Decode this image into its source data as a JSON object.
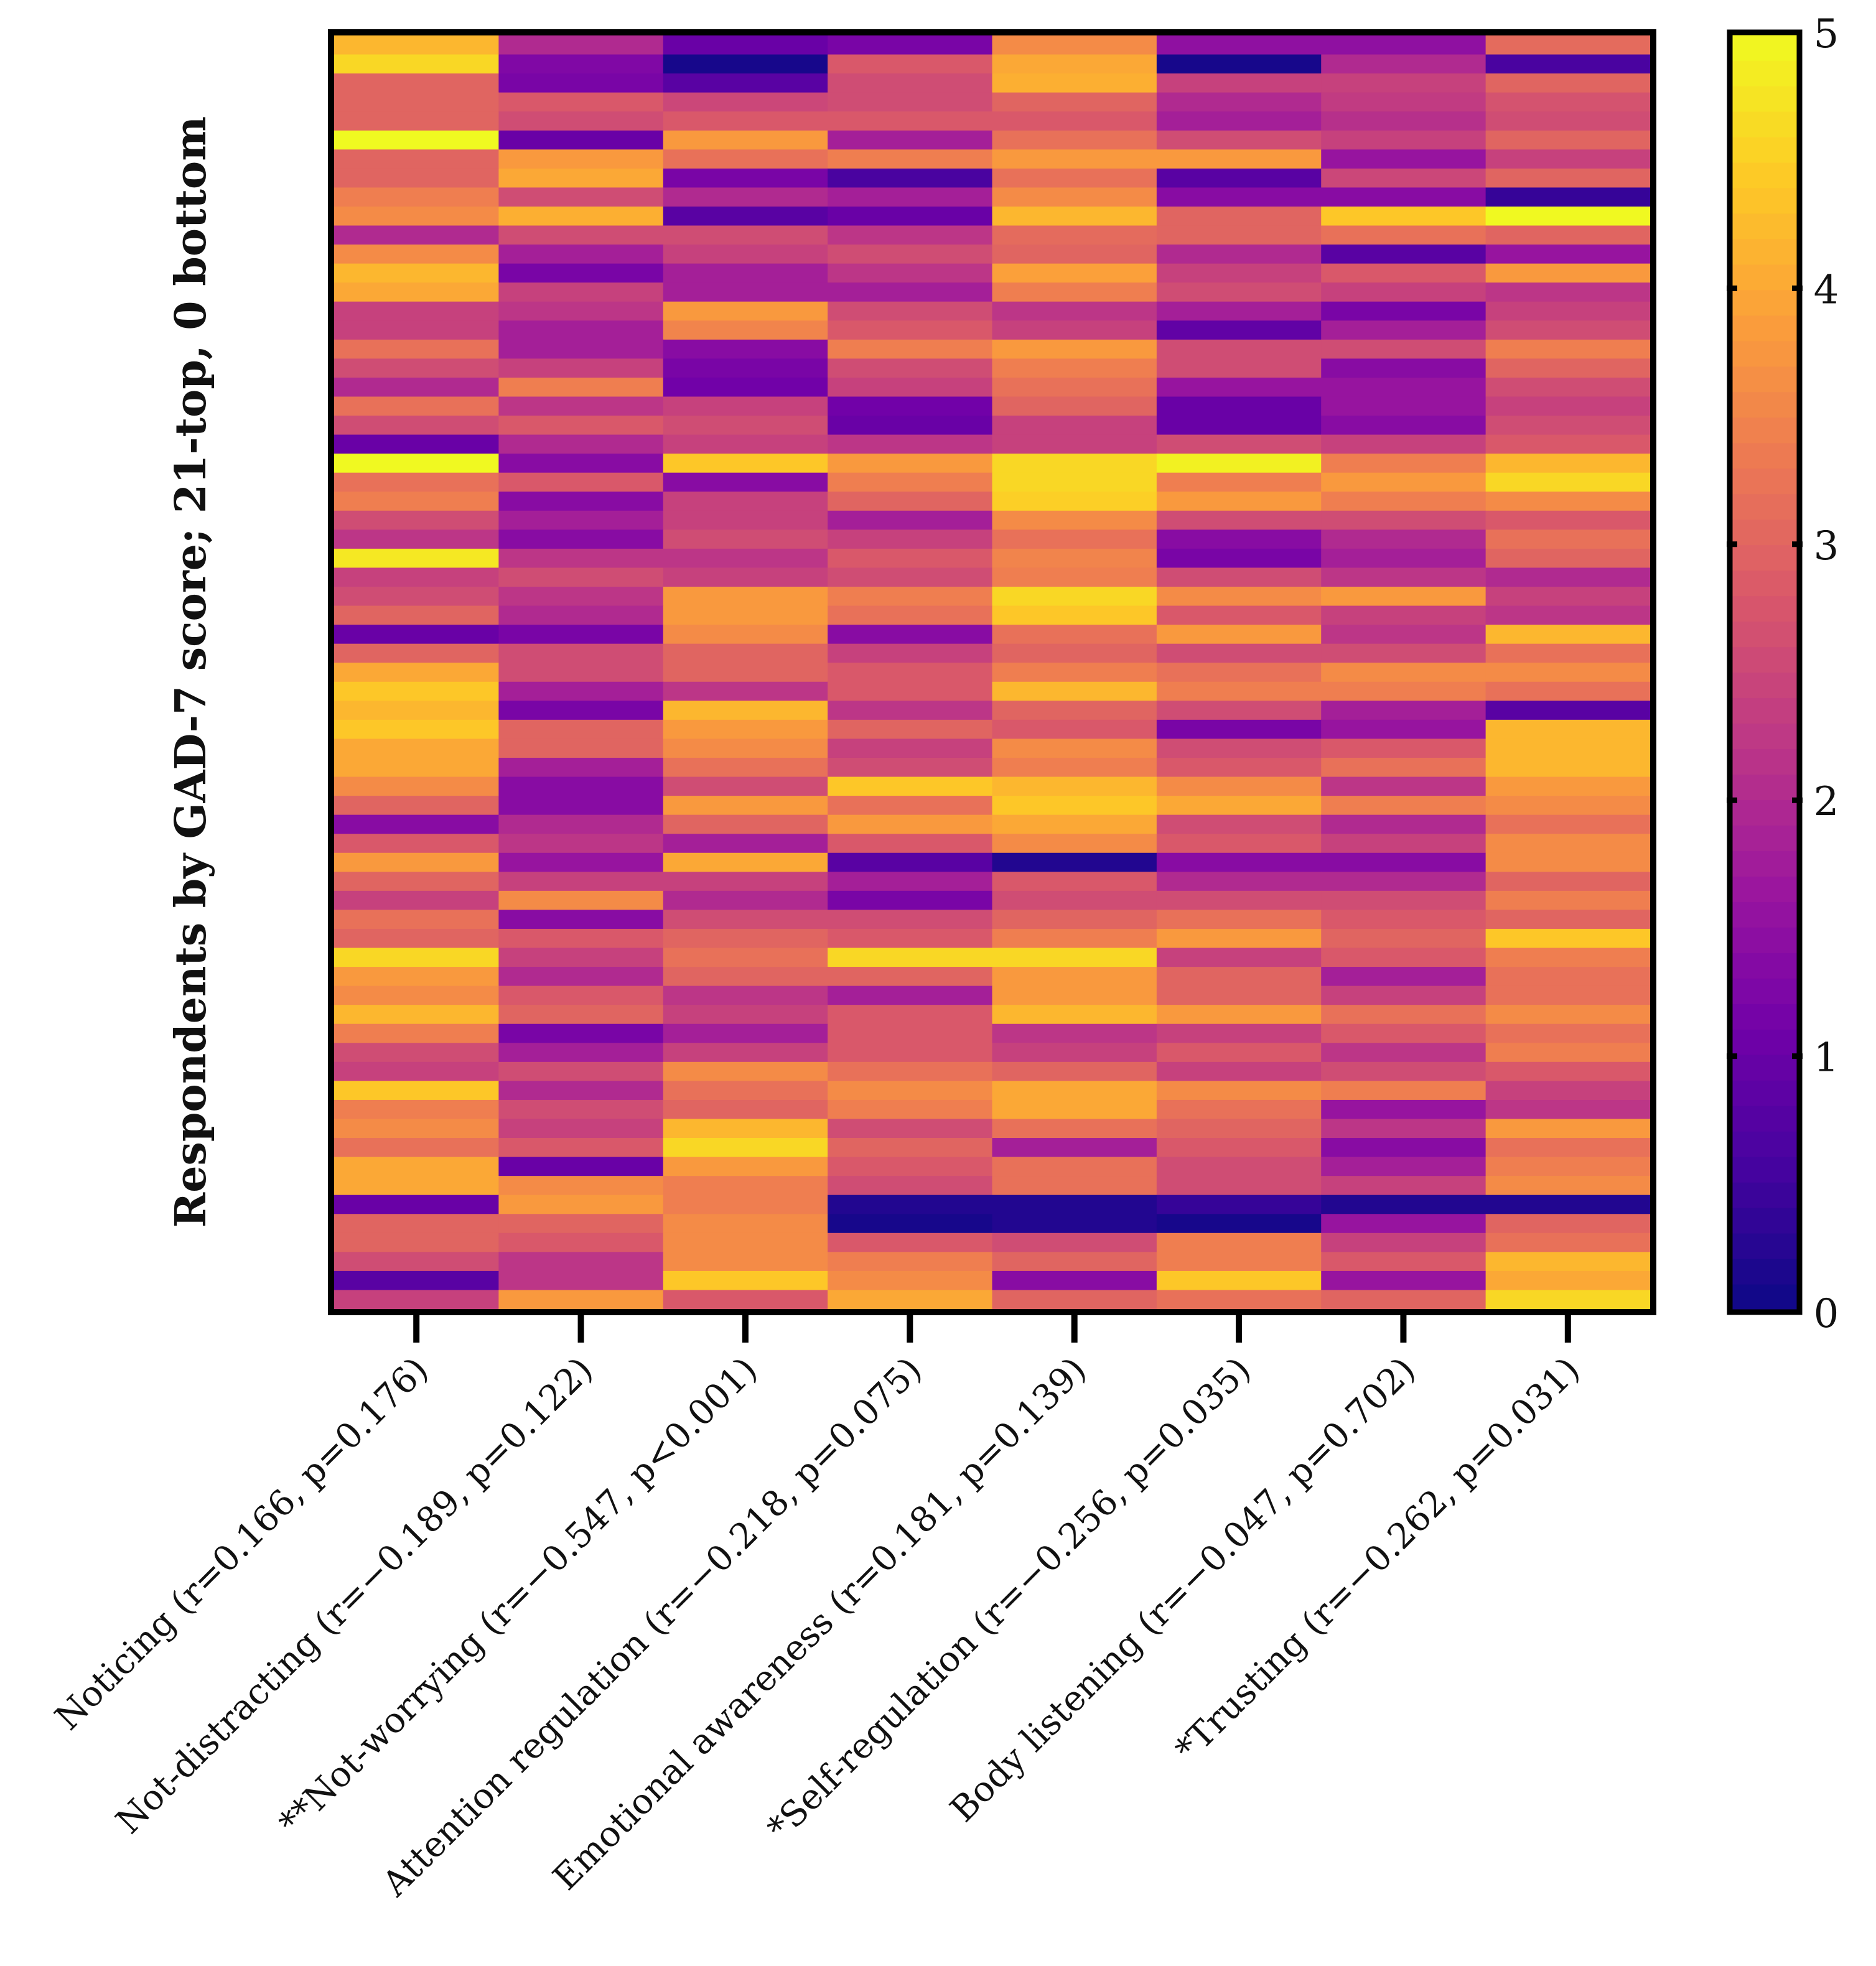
{
  "chart_data": {
    "type": "heatmap",
    "title": "",
    "ylabel": "Respondents by  GAD-7 score; 21-top, 0 bottom",
    "xlabel": "",
    "categories": [
      "Noticing (r=0.166, p=0.176)",
      "Not-distracting (r=−0.189, p=0.122)",
      "**Not-worrying (r=−0.547, p<0.001)",
      "Attention regulation (r=−0.218, p=0.075)",
      "Emotional awareness (r=0.181, p=0.139)",
      "*Self-regulation (r=−0.256, p=0.035)",
      "Body listening (r=−0.047, p=0.702)",
      "*Trusting (r=−0.262, p=0.031)"
    ],
    "colorbar": {
      "min": 0,
      "max": 5,
      "ticks": [
        "0",
        "1",
        "2",
        "3",
        "4",
        "5"
      ],
      "colormap": "plasma",
      "stops": [
        "#0d0887",
        "#46039f",
        "#7201a8",
        "#9c179e",
        "#bd3786",
        "#d8576b",
        "#ed7953",
        "#fb9f3a",
        "#fdca26",
        "#f0f921"
      ]
    },
    "rows_top_to_bottom": [
      [
        4.2,
        2.0,
        1.0,
        1.2,
        3.6,
        1.5,
        1.5,
        3.1
      ],
      [
        4.6,
        1.3,
        0.1,
        2.8,
        4.0,
        0.1,
        2.0,
        0.6
      ],
      [
        3.0,
        1.2,
        0.8,
        2.6,
        4.1,
        2.4,
        2.4,
        3.0
      ],
      [
        3.0,
        2.8,
        2.5,
        2.6,
        3.0,
        2.0,
        2.3,
        2.7
      ],
      [
        3.0,
        2.6,
        2.8,
        2.8,
        2.8,
        1.8,
        2.1,
        2.6
      ],
      [
        5.0,
        1.0,
        3.8,
        1.8,
        3.2,
        2.6,
        2.4,
        3.0
      ],
      [
        3.0,
        3.8,
        3.2,
        3.4,
        3.8,
        3.8,
        1.6,
        2.4
      ],
      [
        3.0,
        4.0,
        1.2,
        0.6,
        3.2,
        0.8,
        2.5,
        3.0
      ],
      [
        3.4,
        2.6,
        2.0,
        1.8,
        3.6,
        1.4,
        1.4,
        0.4
      ],
      [
        3.6,
        4.1,
        0.8,
        1.0,
        4.2,
        3.0,
        4.4,
        5.0
      ],
      [
        2.0,
        2.6,
        2.6,
        2.2,
        3.1,
        3.0,
        3.2,
        3.0
      ],
      [
        3.6,
        1.8,
        2.4,
        2.6,
        3.0,
        2.0,
        0.8,
        1.6
      ],
      [
        4.2,
        1.2,
        1.8,
        2.2,
        3.9,
        2.4,
        2.8,
        3.8
      ],
      [
        4.0,
        2.4,
        1.8,
        1.8,
        3.4,
        2.6,
        2.4,
        2.2
      ],
      [
        2.4,
        2.2,
        3.8,
        2.6,
        2.2,
        1.8,
        1.2,
        2.4
      ],
      [
        2.4,
        1.8,
        3.5,
        2.8,
        2.4,
        0.9,
        1.8,
        2.6
      ],
      [
        3.2,
        1.8,
        1.4,
        3.4,
        3.8,
        2.6,
        2.6,
        3.4
      ],
      [
        2.6,
        2.4,
        1.2,
        2.6,
        3.4,
        2.6,
        1.4,
        3.0
      ],
      [
        2.0,
        3.4,
        1.1,
        2.4,
        3.2,
        1.6,
        1.6,
        2.6
      ],
      [
        3.2,
        2.2,
        2.4,
        1.1,
        3.0,
        1.0,
        1.6,
        2.4
      ],
      [
        2.6,
        2.8,
        2.6,
        1.0,
        2.4,
        1.0,
        1.4,
        2.6
      ],
      [
        1.0,
        2.0,
        2.4,
        2.2,
        2.4,
        2.6,
        2.4,
        2.8
      ],
      [
        5.0,
        1.4,
        4.4,
        3.8,
        4.6,
        4.9,
        3.4,
        4.2
      ],
      [
        3.2,
        2.8,
        1.4,
        3.4,
        4.6,
        3.4,
        3.8,
        4.6
      ],
      [
        3.4,
        1.4,
        2.4,
        3.0,
        4.5,
        3.8,
        3.4,
        3.6
      ],
      [
        2.6,
        1.8,
        2.4,
        1.8,
        3.6,
        2.6,
        2.6,
        2.8
      ],
      [
        2.2,
        1.4,
        2.6,
        2.4,
        3.2,
        1.4,
        2.0,
        3.2
      ],
      [
        4.8,
        2.2,
        2.2,
        2.8,
        3.5,
        1.2,
        1.8,
        3.0
      ],
      [
        2.4,
        2.6,
        2.4,
        2.6,
        3.4,
        2.6,
        2.2,
        2.0
      ],
      [
        2.6,
        2.2,
        3.8,
        3.4,
        4.6,
        3.6,
        3.8,
        2.4
      ],
      [
        3.0,
        2.0,
        3.8,
        3.2,
        4.4,
        2.8,
        2.4,
        2.2
      ],
      [
        1.0,
        1.2,
        3.6,
        1.4,
        3.2,
        3.8,
        2.2,
        4.2
      ],
      [
        3.0,
        2.6,
        3.0,
        2.4,
        3.0,
        2.6,
        2.6,
        3.2
      ],
      [
        4.0,
        2.6,
        3.0,
        2.8,
        3.4,
        3.2,
        3.6,
        3.6
      ],
      [
        4.4,
        1.8,
        2.2,
        2.8,
        4.2,
        3.4,
        3.4,
        3.2
      ],
      [
        4.2,
        1.2,
        4.2,
        2.2,
        3.0,
        2.6,
        1.8,
        0.8
      ],
      [
        4.4,
        3.0,
        3.8,
        3.0,
        2.8,
        1.2,
        1.6,
        4.2
      ],
      [
        4.0,
        3.0,
        3.6,
        2.4,
        3.6,
        2.6,
        2.8,
        4.2
      ],
      [
        4.0,
        1.8,
        3.2,
        2.6,
        3.4,
        2.8,
        3.2,
        4.2
      ],
      [
        3.6,
        1.4,
        2.6,
        4.4,
        4.2,
        3.6,
        2.2,
        3.8
      ],
      [
        3.0,
        1.4,
        3.8,
        3.2,
        4.4,
        4.0,
        3.4,
        3.6
      ],
      [
        1.4,
        2.0,
        3.0,
        3.8,
        4.0,
        2.6,
        2.0,
        3.2
      ],
      [
        2.8,
        2.2,
        1.8,
        2.8,
        3.6,
        2.8,
        2.4,
        3.6
      ],
      [
        3.8,
        1.6,
        4.0,
        0.8,
        0.2,
        1.4,
        1.4,
        3.6
      ],
      [
        3.0,
        2.4,
        2.4,
        1.8,
        2.8,
        2.0,
        2.0,
        3.0
      ],
      [
        2.4,
        3.6,
        2.0,
        1.2,
        2.6,
        2.6,
        2.6,
        3.4
      ],
      [
        3.2,
        1.4,
        2.6,
        2.6,
        3.0,
        3.2,
        2.8,
        3.0
      ],
      [
        3.0,
        2.8,
        3.0,
        2.8,
        3.4,
        3.8,
        3.0,
        4.4
      ],
      [
        4.6,
        2.4,
        3.2,
        4.6,
        4.6,
        2.4,
        2.8,
        3.4
      ],
      [
        3.8,
        2.0,
        3.0,
        3.0,
        3.8,
        3.0,
        1.8,
        3.2
      ],
      [
        3.6,
        2.8,
        2.2,
        1.8,
        3.8,
        3.0,
        2.4,
        3.2
      ],
      [
        4.2,
        3.0,
        2.4,
        2.8,
        4.2,
        3.8,
        3.2,
        3.6
      ],
      [
        3.4,
        1.2,
        1.8,
        2.8,
        2.2,
        2.4,
        2.8,
        3.2
      ],
      [
        2.6,
        1.8,
        2.4,
        2.8,
        2.4,
        2.8,
        2.2,
        3.4
      ],
      [
        2.4,
        2.6,
        3.6,
        3.2,
        3.0,
        2.4,
        2.6,
        2.8
      ],
      [
        4.4,
        2.0,
        3.2,
        3.6,
        4.0,
        3.6,
        3.4,
        2.4
      ],
      [
        3.4,
        2.6,
        3.0,
        3.4,
        4.0,
        3.2,
        1.6,
        2.2
      ],
      [
        3.6,
        2.4,
        4.2,
        2.6,
        3.2,
        3.0,
        2.2,
        3.8
      ],
      [
        3.2,
        2.8,
        4.6,
        3.0,
        1.8,
        2.8,
        1.4,
        3.2
      ],
      [
        4.0,
        1.0,
        3.8,
        2.8,
        3.2,
        2.6,
        1.8,
        3.4
      ],
      [
        4.0,
        3.6,
        3.4,
        2.6,
        3.2,
        2.6,
        2.4,
        3.6
      ],
      [
        1.0,
        3.8,
        3.4,
        0.2,
        0.2,
        0.4,
        0.2,
        0.2
      ],
      [
        3.0,
        3.0,
        3.6,
        0.1,
        0.2,
        0.1,
        1.6,
        3.0
      ],
      [
        3.0,
        2.8,
        3.6,
        2.8,
        2.6,
        3.4,
        2.4,
        3.2
      ],
      [
        2.6,
        2.2,
        3.6,
        3.4,
        3.0,
        3.4,
        2.8,
        4.2
      ],
      [
        0.8,
        2.2,
        4.4,
        3.6,
        1.4,
        4.4,
        1.6,
        4.0
      ],
      [
        2.4,
        3.8,
        2.8,
        4.0,
        3.0,
        3.2,
        3.0,
        4.6
      ]
    ]
  }
}
